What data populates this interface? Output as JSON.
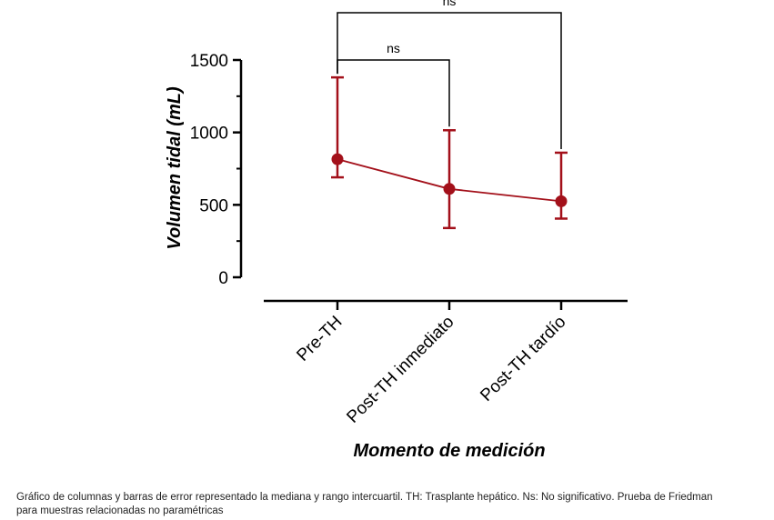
{
  "chart_data": {
    "type": "line",
    "title": "",
    "xlabel": "Momento de medición",
    "ylabel": "Volumen tidal (mL)",
    "categories": [
      "Pre-TH",
      "Post-TH inmediato",
      "Post-TH tardío"
    ],
    "series": [
      {
        "name": "Mediana",
        "values": [
          815,
          610,
          525
        ],
        "error_low": [
          690,
          340,
          405
        ],
        "error_high": [
          1380,
          1015,
          860
        ],
        "color": "#a3101a"
      }
    ],
    "ylim": [
      0,
      1500
    ],
    "yticks": [
      0,
      500,
      1000,
      1500
    ],
    "annotations": [
      {
        "from": 0,
        "to": 1,
        "text": "ns"
      },
      {
        "from": 0,
        "to": 2,
        "text": "ns"
      }
    ]
  },
  "caption": {
    "line1": "Gráfico de columnas y barras de error representado la mediana y rango intercuartil. TH: Trasplante hepático. Ns: No significativo. Prueba de Friedman",
    "line2": "para muestras relacionadas no paramétricas"
  }
}
